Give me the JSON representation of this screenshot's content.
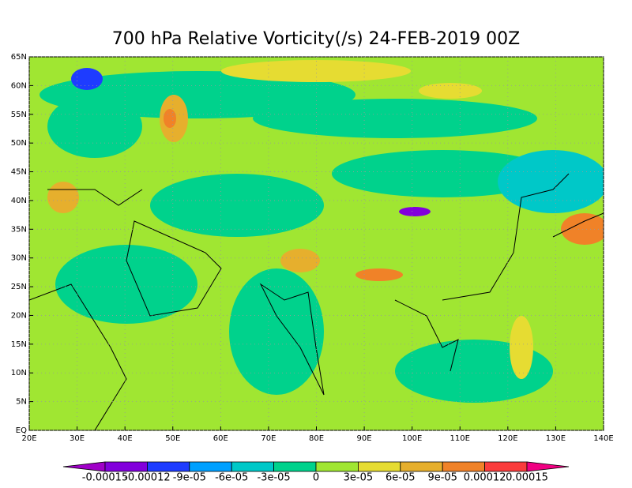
{
  "map": {
    "title": "700 hPa Relative Vorticity(/s) 24-FEB-2019 00Z",
    "xlim": [
      20,
      140
    ],
    "xticks": [
      {
        "value": 20,
        "label": "20E"
      },
      {
        "value": 30,
        "label": "30E"
      },
      {
        "value": 40,
        "label": "40E"
      },
      {
        "value": 50,
        "label": "50E"
      },
      {
        "value": 60,
        "label": "60E"
      },
      {
        "value": 70,
        "label": "70E"
      },
      {
        "value": 80,
        "label": "80E"
      },
      {
        "value": 90,
        "label": "90E"
      },
      {
        "value": 100,
        "label": "100E"
      },
      {
        "value": 110,
        "label": "110E"
      },
      {
        "value": 120,
        "label": "120E"
      },
      {
        "value": 130,
        "label": "130E"
      },
      {
        "value": 140,
        "label": "140E"
      }
    ],
    "ylim": [
      0,
      65
    ],
    "yticks": [
      {
        "value": 0,
        "label": "EQ"
      },
      {
        "value": 5,
        "label": "5N"
      },
      {
        "value": 10,
        "label": "10N"
      },
      {
        "value": 15,
        "label": "15N"
      },
      {
        "value": 20,
        "label": "20N"
      },
      {
        "value": 25,
        "label": "25N"
      },
      {
        "value": 30,
        "label": "30N"
      },
      {
        "value": 35,
        "label": "35N"
      },
      {
        "value": 40,
        "label": "40N"
      },
      {
        "value": 45,
        "label": "45N"
      },
      {
        "value": 50,
        "label": "50N"
      },
      {
        "value": 55,
        "label": "55N"
      },
      {
        "value": 60,
        "label": "60N"
      },
      {
        "value": 65,
        "label": "65N"
      }
    ],
    "colorbar": {
      "levels": [
        {
          "value": -0.00015,
          "label": "-0.00015"
        },
        {
          "value": -0.00012,
          "label": "-0.00012"
        },
        {
          "value": -9e-05,
          "label": "-9e-05"
        },
        {
          "value": -6e-05,
          "label": "-6e-05"
        },
        {
          "value": -3e-05,
          "label": "-3e-05"
        },
        0,
        {
          "value": 3e-05,
          "label": "3e-05"
        },
        {
          "value": 6e-05,
          "label": "6e-05"
        },
        {
          "value": 9e-05,
          "label": "9e-05"
        },
        {
          "value": 0.00012,
          "label": "0.00012"
        },
        {
          "value": 0.00015,
          "label": "0.00015"
        }
      ],
      "colors": [
        "#a000c8",
        "#8200dc",
        "#1e3cff",
        "#00a0ff",
        "#00c8c8",
        "#00d28c",
        "#a0e632",
        "#e6dc32",
        "#e6af2d",
        "#f08228",
        "#fa3c3c",
        "#f00082"
      ]
    }
  }
}
